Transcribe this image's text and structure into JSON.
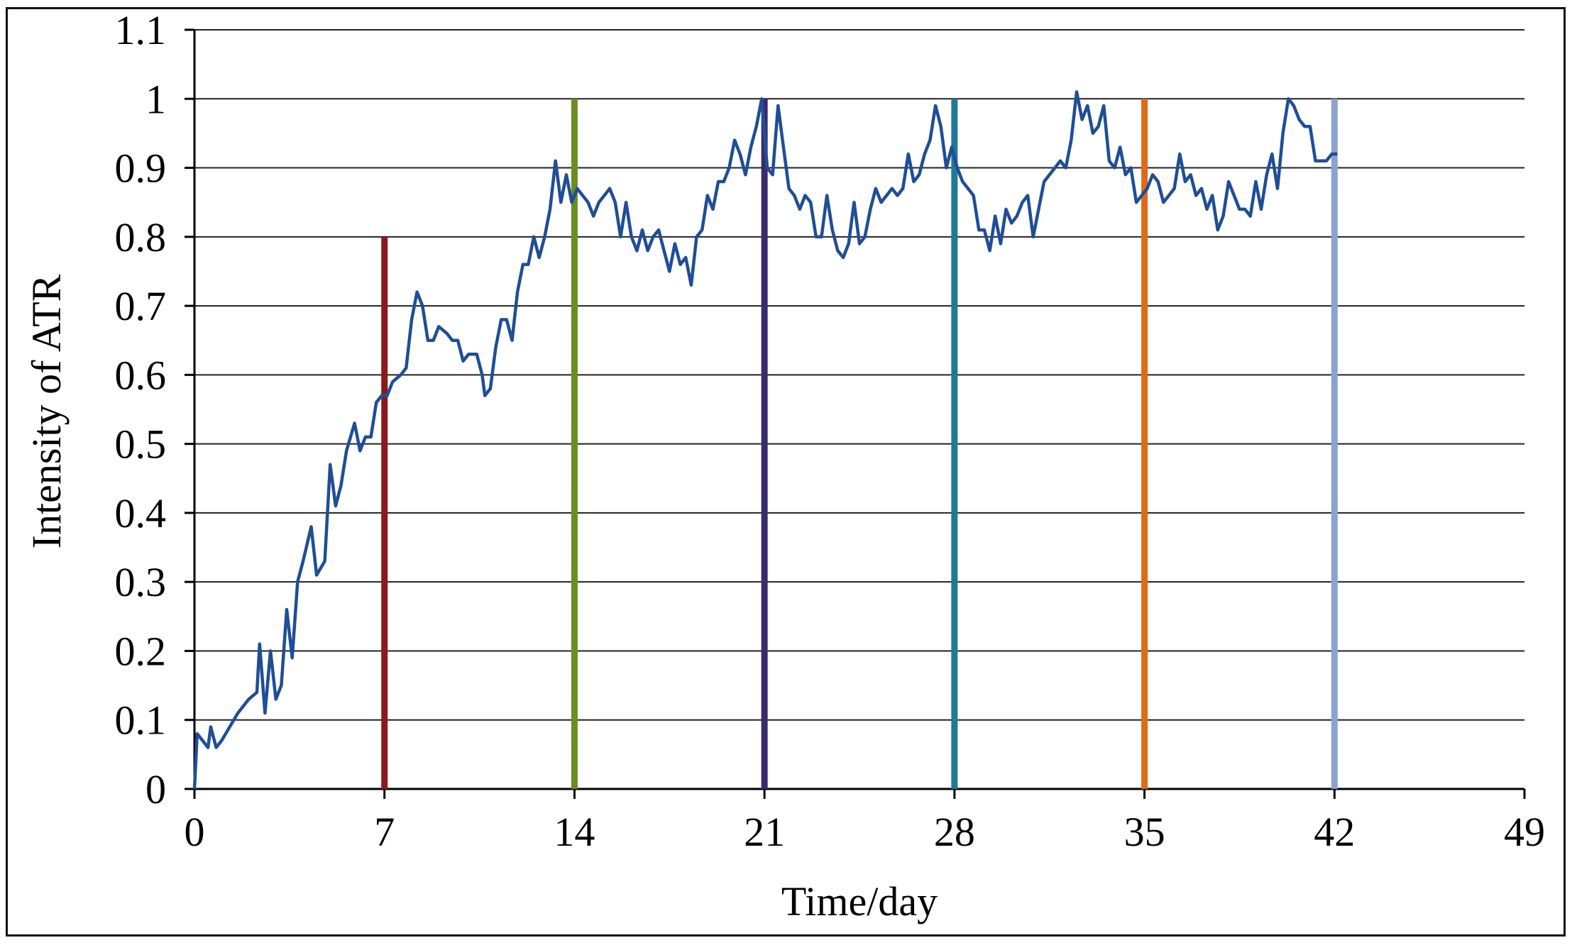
{
  "chart_data": {
    "type": "line",
    "title": "",
    "xlabel": "Time/day",
    "ylabel": "Intensity of ATR",
    "xlim": [
      0,
      49
    ],
    "ylim": [
      0,
      1.1
    ],
    "x_ticks": [
      0,
      7,
      14,
      21,
      28,
      35,
      42,
      49
    ],
    "y_ticks": [
      0,
      0.1,
      0.2,
      0.3,
      0.4,
      0.5,
      0.6,
      0.7,
      0.8,
      0.9,
      1,
      1.1
    ],
    "x_tick_labels": [
      "0",
      "7",
      "14",
      "21",
      "28",
      "35",
      "42",
      "49"
    ],
    "y_tick_labels": [
      "0",
      "0.1",
      "0.2",
      "0.3",
      "0.4",
      "0.5",
      "0.6",
      "0.7",
      "0.8",
      "0.9",
      "1",
      "1.1"
    ],
    "grid": "horizontal",
    "legend": "none",
    "series": [
      {
        "color": "#1f4e96",
        "points": [
          [
            0,
            0.0
          ],
          [
            0.1,
            0.08
          ],
          [
            0.3,
            0.07
          ],
          [
            0.5,
            0.06
          ],
          [
            0.6,
            0.09
          ],
          [
            0.8,
            0.06
          ],
          [
            1.0,
            0.07
          ],
          [
            1.3,
            0.09
          ],
          [
            1.6,
            0.11
          ],
          [
            2.0,
            0.13
          ],
          [
            2.3,
            0.14
          ],
          [
            2.4,
            0.21
          ],
          [
            2.6,
            0.11
          ],
          [
            2.8,
            0.2
          ],
          [
            3.0,
            0.13
          ],
          [
            3.2,
            0.15
          ],
          [
            3.4,
            0.26
          ],
          [
            3.6,
            0.19
          ],
          [
            3.8,
            0.3
          ],
          [
            4.0,
            0.33
          ],
          [
            4.3,
            0.38
          ],
          [
            4.5,
            0.31
          ],
          [
            4.8,
            0.33
          ],
          [
            5.0,
            0.47
          ],
          [
            5.2,
            0.41
          ],
          [
            5.4,
            0.44
          ],
          [
            5.6,
            0.49
          ],
          [
            5.9,
            0.53
          ],
          [
            6.1,
            0.49
          ],
          [
            6.3,
            0.51
          ],
          [
            6.5,
            0.51
          ],
          [
            6.7,
            0.56
          ],
          [
            6.9,
            0.57
          ],
          [
            7.1,
            0.57
          ],
          [
            7.3,
            0.59
          ],
          [
            7.6,
            0.6
          ],
          [
            7.8,
            0.61
          ],
          [
            8.0,
            0.68
          ],
          [
            8.2,
            0.72
          ],
          [
            8.4,
            0.7
          ],
          [
            8.6,
            0.65
          ],
          [
            8.8,
            0.65
          ],
          [
            9.0,
            0.67
          ],
          [
            9.3,
            0.66
          ],
          [
            9.5,
            0.65
          ],
          [
            9.7,
            0.65
          ],
          [
            9.9,
            0.62
          ],
          [
            10.1,
            0.63
          ],
          [
            10.4,
            0.63
          ],
          [
            10.6,
            0.6
          ],
          [
            10.7,
            0.57
          ],
          [
            10.9,
            0.58
          ],
          [
            11.1,
            0.64
          ],
          [
            11.3,
            0.68
          ],
          [
            11.5,
            0.68
          ],
          [
            11.7,
            0.65
          ],
          [
            11.9,
            0.72
          ],
          [
            12.1,
            0.76
          ],
          [
            12.3,
            0.76
          ],
          [
            12.5,
            0.8
          ],
          [
            12.7,
            0.77
          ],
          [
            12.9,
            0.8
          ],
          [
            13.1,
            0.84
          ],
          [
            13.3,
            0.91
          ],
          [
            13.5,
            0.85
          ],
          [
            13.7,
            0.89
          ],
          [
            13.9,
            0.85
          ],
          [
            14.1,
            0.87
          ],
          [
            14.3,
            0.86
          ],
          [
            14.5,
            0.85
          ],
          [
            14.7,
            0.83
          ],
          [
            14.9,
            0.85
          ],
          [
            15.1,
            0.86
          ],
          [
            15.3,
            0.87
          ],
          [
            15.5,
            0.85
          ],
          [
            15.7,
            0.8
          ],
          [
            15.9,
            0.85
          ],
          [
            16.1,
            0.8
          ],
          [
            16.3,
            0.78
          ],
          [
            16.5,
            0.81
          ],
          [
            16.7,
            0.78
          ],
          [
            16.9,
            0.8
          ],
          [
            17.1,
            0.81
          ],
          [
            17.3,
            0.78
          ],
          [
            17.5,
            0.75
          ],
          [
            17.7,
            0.79
          ],
          [
            17.9,
            0.76
          ],
          [
            18.1,
            0.77
          ],
          [
            18.3,
            0.73
          ],
          [
            18.5,
            0.8
          ],
          [
            18.7,
            0.81
          ],
          [
            18.9,
            0.86
          ],
          [
            19.1,
            0.84
          ],
          [
            19.3,
            0.88
          ],
          [
            19.5,
            0.88
          ],
          [
            19.7,
            0.9
          ],
          [
            19.9,
            0.94
          ],
          [
            20.1,
            0.92
          ],
          [
            20.3,
            0.89
          ],
          [
            20.5,
            0.93
          ],
          [
            20.7,
            0.96
          ],
          [
            20.9,
            1.0
          ],
          [
            21.1,
            0.9
          ],
          [
            21.3,
            0.89
          ],
          [
            21.5,
            0.99
          ],
          [
            21.7,
            0.93
          ],
          [
            21.9,
            0.87
          ],
          [
            22.1,
            0.86
          ],
          [
            22.3,
            0.84
          ],
          [
            22.5,
            0.86
          ],
          [
            22.7,
            0.85
          ],
          [
            22.9,
            0.8
          ],
          [
            23.1,
            0.8
          ],
          [
            23.3,
            0.86
          ],
          [
            23.5,
            0.81
          ],
          [
            23.7,
            0.78
          ],
          [
            23.9,
            0.77
          ],
          [
            24.1,
            0.79
          ],
          [
            24.3,
            0.85
          ],
          [
            24.5,
            0.79
          ],
          [
            24.7,
            0.8
          ],
          [
            24.9,
            0.84
          ],
          [
            25.1,
            0.87
          ],
          [
            25.3,
            0.85
          ],
          [
            25.5,
            0.86
          ],
          [
            25.7,
            0.87
          ],
          [
            25.9,
            0.86
          ],
          [
            26.1,
            0.87
          ],
          [
            26.3,
            0.92
          ],
          [
            26.5,
            0.88
          ],
          [
            26.7,
            0.89
          ],
          [
            26.9,
            0.92
          ],
          [
            27.1,
            0.94
          ],
          [
            27.3,
            0.99
          ],
          [
            27.5,
            0.96
          ],
          [
            27.7,
            0.9
          ],
          [
            27.9,
            0.93
          ],
          [
            28.1,
            0.9
          ],
          [
            28.3,
            0.88
          ],
          [
            28.5,
            0.87
          ],
          [
            28.7,
            0.86
          ],
          [
            28.9,
            0.81
          ],
          [
            29.1,
            0.81
          ],
          [
            29.3,
            0.78
          ],
          [
            29.5,
            0.83
          ],
          [
            29.7,
            0.79
          ],
          [
            29.9,
            0.84
          ],
          [
            30.1,
            0.82
          ],
          [
            30.3,
            0.83
          ],
          [
            30.5,
            0.85
          ],
          [
            30.7,
            0.86
          ],
          [
            30.9,
            0.8
          ],
          [
            31.1,
            0.84
          ],
          [
            31.3,
            0.88
          ],
          [
            31.5,
            0.89
          ],
          [
            31.7,
            0.9
          ],
          [
            31.9,
            0.91
          ],
          [
            32.1,
            0.9
          ],
          [
            32.3,
            0.94
          ],
          [
            32.5,
            1.01
          ],
          [
            32.7,
            0.97
          ],
          [
            32.9,
            0.99
          ],
          [
            33.1,
            0.95
          ],
          [
            33.3,
            0.96
          ],
          [
            33.5,
            0.99
          ],
          [
            33.7,
            0.91
          ],
          [
            33.9,
            0.9
          ],
          [
            34.1,
            0.93
          ],
          [
            34.3,
            0.89
          ],
          [
            34.5,
            0.9
          ],
          [
            34.7,
            0.85
          ],
          [
            34.9,
            0.86
          ],
          [
            35.1,
            0.87
          ],
          [
            35.3,
            0.89
          ],
          [
            35.5,
            0.88
          ],
          [
            35.7,
            0.85
          ],
          [
            35.9,
            0.86
          ],
          [
            36.1,
            0.87
          ],
          [
            36.3,
            0.92
          ],
          [
            36.5,
            0.88
          ],
          [
            36.7,
            0.89
          ],
          [
            36.9,
            0.86
          ],
          [
            37.1,
            0.87
          ],
          [
            37.3,
            0.84
          ],
          [
            37.5,
            0.86
          ],
          [
            37.7,
            0.81
          ],
          [
            37.9,
            0.83
          ],
          [
            38.1,
            0.88
          ],
          [
            38.3,
            0.86
          ],
          [
            38.5,
            0.84
          ],
          [
            38.7,
            0.84
          ],
          [
            38.9,
            0.83
          ],
          [
            39.1,
            0.88
          ],
          [
            39.3,
            0.84
          ],
          [
            39.5,
            0.89
          ],
          [
            39.7,
            0.92
          ],
          [
            39.9,
            0.87
          ],
          [
            40.1,
            0.95
          ],
          [
            40.3,
            1.0
          ],
          [
            40.5,
            0.99
          ],
          [
            40.7,
            0.97
          ],
          [
            40.9,
            0.96
          ],
          [
            41.1,
            0.96
          ],
          [
            41.3,
            0.91
          ],
          [
            41.5,
            0.91
          ],
          [
            41.7,
            0.91
          ],
          [
            41.9,
            0.92
          ],
          [
            42.1,
            0.92
          ]
        ]
      }
    ],
    "markers": [
      {
        "x": 7,
        "top": 0.8,
        "color": "#8b1a1a"
      },
      {
        "x": 14,
        "top": 1.0,
        "color": "#6b8e23"
      },
      {
        "x": 21,
        "top": 1.0,
        "color": "#3b2a6b"
      },
      {
        "x": 28,
        "top": 1.0,
        "color": "#1f7a99"
      },
      {
        "x": 35,
        "top": 1.0,
        "color": "#e06a1a"
      },
      {
        "x": 42,
        "top": 1.0,
        "color": "#8da2d1"
      }
    ]
  }
}
